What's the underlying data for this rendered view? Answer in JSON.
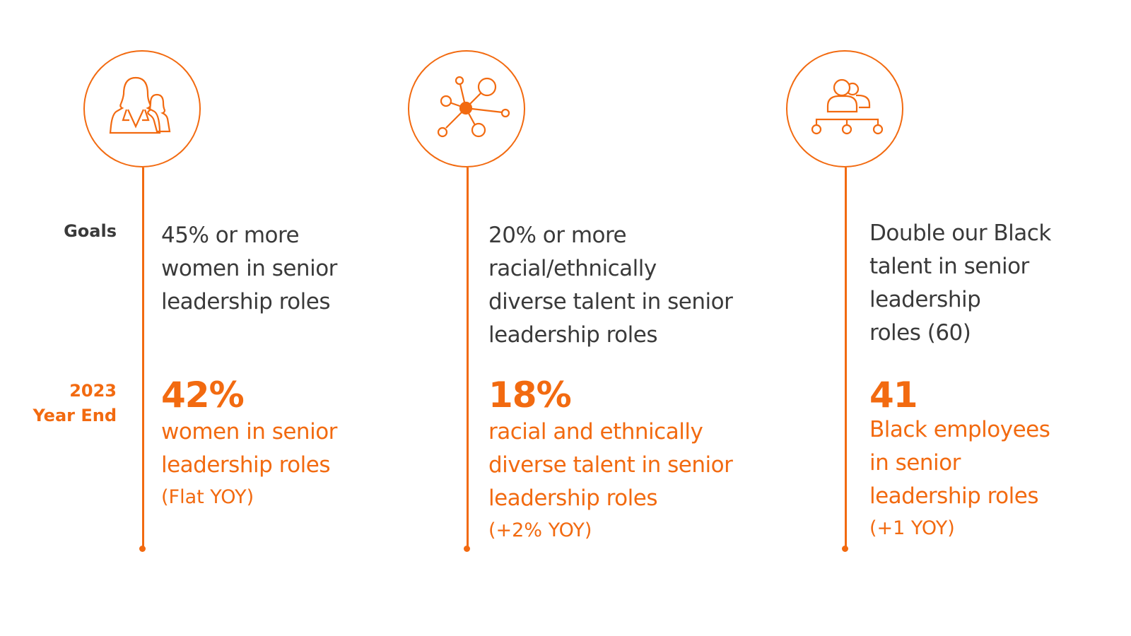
{
  "colors": {
    "accent": "#f26a10",
    "text": "#3a3a3a"
  },
  "labels": {
    "goals": "Goals",
    "year_end_line1": "2023",
    "year_end_line2": "Year End"
  },
  "columns": [
    {
      "icon": "women-icon",
      "goal": [
        "45% or more",
        "women in senior",
        "leadership roles"
      ],
      "value": "42%",
      "description": [
        "women in senior",
        "leadership roles"
      ],
      "change": "(Flat YOY)"
    },
    {
      "icon": "network-icon",
      "goal": [
        "20% or more",
        "racial/ethnically",
        "diverse talent in senior",
        "leadership roles"
      ],
      "value": "18%",
      "description": [
        "racial and ethnically",
        "diverse talent in senior",
        "leadership roles"
      ],
      "change": "(+2% YOY)"
    },
    {
      "icon": "people-hierarchy-icon",
      "goal": [
        "Double our Black",
        "talent in senior",
        "leadership",
        "roles (60)"
      ],
      "value": "41",
      "description": [
        "Black employees",
        "in senior",
        "leadership roles"
      ],
      "change": "(+1 YOY)"
    }
  ]
}
